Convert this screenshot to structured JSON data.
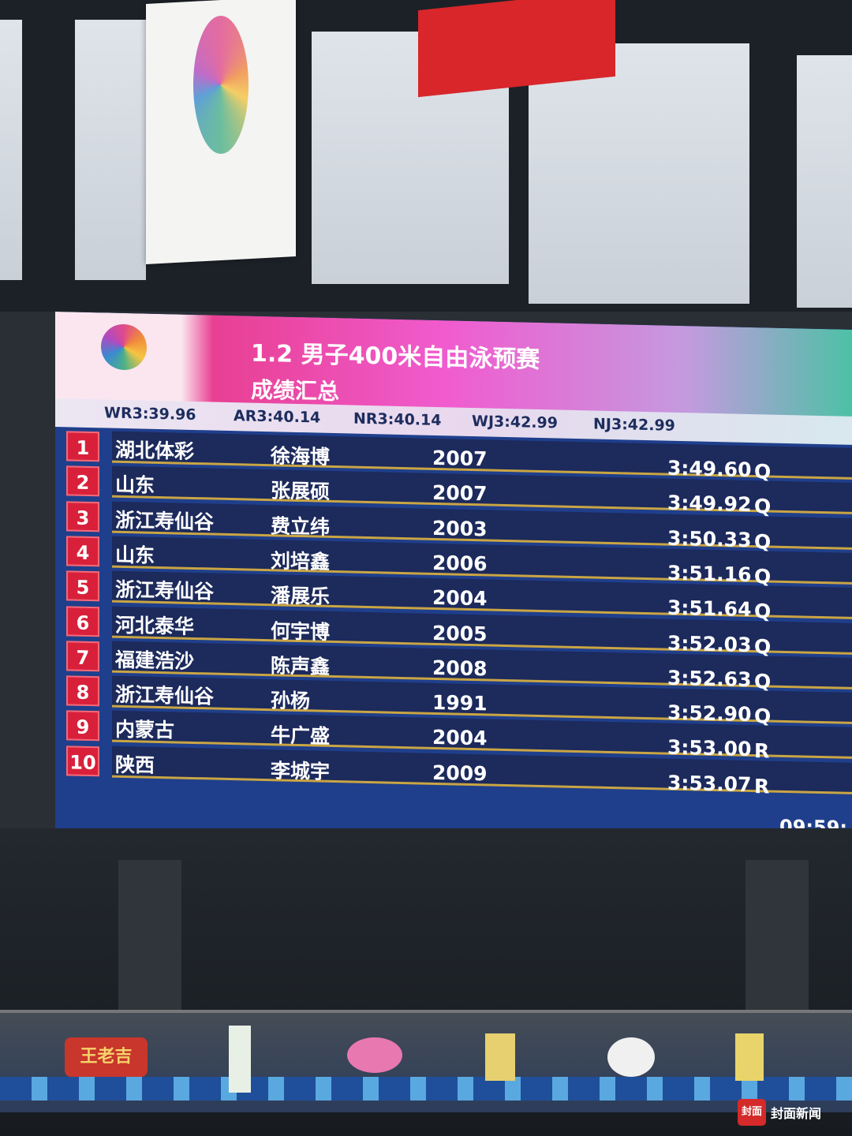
{
  "event": {
    "title": "1.2 男子400米自由泳预赛",
    "subtitle": "成绩汇总"
  },
  "records": [
    {
      "label": "WR",
      "time": "3:39.96"
    },
    {
      "label": "AR",
      "time": "3:40.14"
    },
    {
      "label": "NR",
      "time": "3:40.14"
    },
    {
      "label": "WJ",
      "time": "3:42.99"
    },
    {
      "label": "NJ",
      "time": "3:42.99"
    }
  ],
  "results": [
    {
      "rank": "1",
      "team": "湖北体彩",
      "name": "徐海博",
      "year": "2007",
      "time": "3:49.60",
      "status": "Q"
    },
    {
      "rank": "2",
      "team": "山东",
      "name": "张展硕",
      "year": "2007",
      "time": "3:49.92",
      "status": "Q"
    },
    {
      "rank": "3",
      "team": "浙江寿仙谷",
      "name": "费立纬",
      "year": "2003",
      "time": "3:50.33",
      "status": "Q"
    },
    {
      "rank": "4",
      "team": "山东",
      "name": "刘培鑫",
      "year": "2006",
      "time": "3:51.16",
      "status": "Q"
    },
    {
      "rank": "5",
      "team": "浙江寿仙谷",
      "name": "潘展乐",
      "year": "2004",
      "time": "3:51.64",
      "status": "Q"
    },
    {
      "rank": "6",
      "team": "河北泰华",
      "name": "何宇博",
      "year": "2005",
      "time": "3:52.03",
      "status": "Q"
    },
    {
      "rank": "7",
      "team": "福建浩沙",
      "name": "陈声鑫",
      "year": "2008",
      "time": "3:52.63",
      "status": "Q"
    },
    {
      "rank": "8",
      "team": "浙江寿仙谷",
      "name": "孙杨",
      "year": "1991",
      "time": "3:52.90",
      "status": "Q"
    },
    {
      "rank": "9",
      "team": "内蒙古",
      "name": "牛广盛",
      "year": "2004",
      "time": "3:53.00",
      "status": "R"
    },
    {
      "rank": "10",
      "team": "陕西",
      "name": "李城宇",
      "year": "2009",
      "time": "3:53.07",
      "status": "R"
    }
  ],
  "clock": "09:59:",
  "ads": [
    "王老吉"
  ],
  "watermark": {
    "badge": "封面",
    "name": "封面新闻"
  },
  "colors": {
    "board": "#1f3f8c",
    "rank_box": "#d9203a",
    "header_pink": "#e83f92"
  }
}
